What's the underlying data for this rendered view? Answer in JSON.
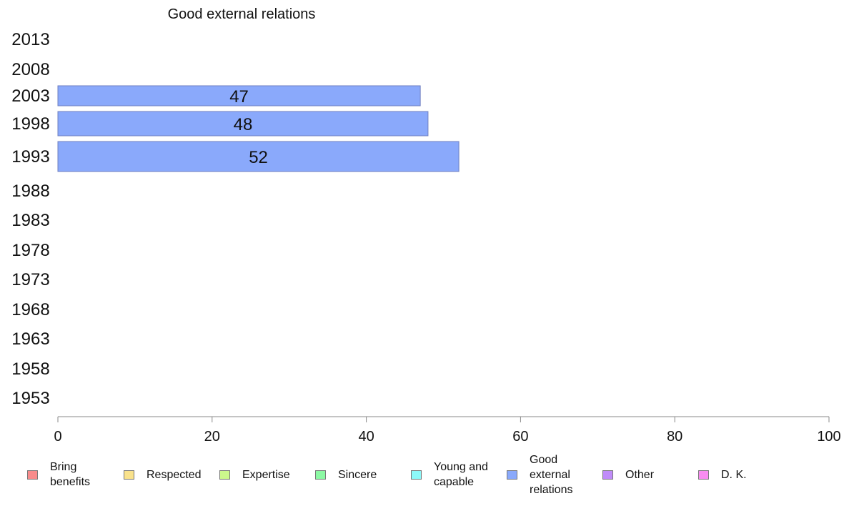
{
  "chart_data": {
    "type": "bar",
    "orientation": "horizontal",
    "title": "Good external relations",
    "categories": [
      "2013",
      "2008",
      "2003",
      "1998",
      "1993",
      "1988",
      "1983",
      "1978",
      "1973",
      "1968",
      "1963",
      "1958",
      "1953"
    ],
    "series": [
      {
        "name": "Good external relations",
        "values": [
          null,
          null,
          47,
          48,
          52,
          null,
          null,
          null,
          null,
          null,
          null,
          null,
          null
        ]
      }
    ],
    "data_labels": [
      "",
      "",
      "47",
      "48",
      "52",
      "",
      "",
      "",
      "",
      "",
      "",
      "",
      ""
    ],
    "xlim": [
      0,
      100
    ],
    "x_ticks": [
      "0",
      "20",
      "40",
      "60",
      "80",
      "100"
    ],
    "grid": false,
    "bar_color": "#8aa9fb",
    "legend_position": "bottom",
    "legend": [
      {
        "label": "Bring\nbenefits",
        "color": "#f88c8c"
      },
      {
        "label": "Respected",
        "color": "#f9e28c"
      },
      {
        "label": "Expertise",
        "color": "#ccf98c"
      },
      {
        "label": "Sincere",
        "color": "#8cf9a4"
      },
      {
        "label": "Young and\ncapable",
        "color": "#8cf9f9"
      },
      {
        "label": "Good\nexternal\nrelations",
        "color": "#8aa9fb"
      },
      {
        "label": "Other",
        "color": "#c08cf9"
      },
      {
        "label": "D. K.",
        "color": "#f88cf0"
      }
    ]
  }
}
